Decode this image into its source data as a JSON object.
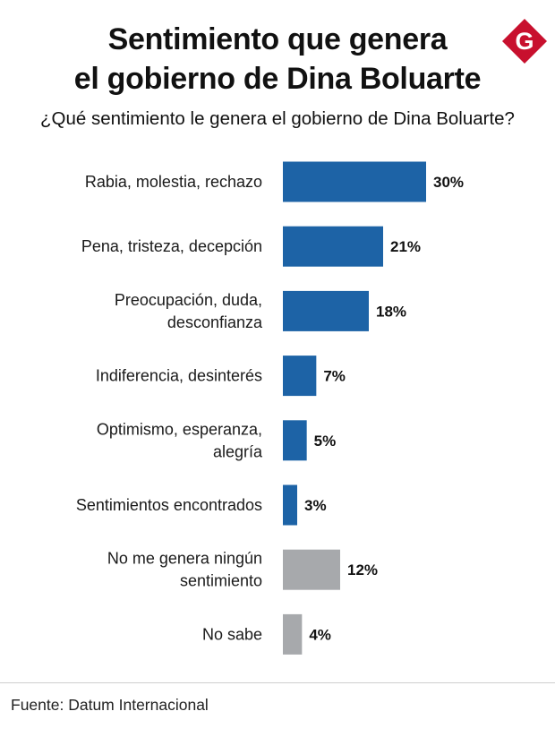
{
  "header": {
    "title_line1": "Sentimiento que genera",
    "title_line2": "el gobierno de Dina Boluarte",
    "logo_letter": "G",
    "logo_icon": "gestion-logo-icon"
  },
  "colors": {
    "primary_bar": "#1d63a6",
    "neutral_bar": "#a7a9ac",
    "logo_red": "#c8102e"
  },
  "chart_data": {
    "type": "bar",
    "orientation": "horizontal",
    "title": "Sentimiento que genera el gobierno de Dina Boluarte",
    "subtitle": "¿Qué sentimiento le genera el gobierno de Dina Boluarte?",
    "categories": [
      [
        "Rabia, molestia, rechazo"
      ],
      [
        "Pena, tristeza, decepción"
      ],
      [
        "Preocupación, duda,",
        "desconfianza"
      ],
      [
        "Indiferencia, desinterés"
      ],
      [
        "Optimismo, esperanza,",
        "alegría"
      ],
      [
        "Sentimientos encontrados"
      ],
      [
        "No me genera ningún",
        "sentimiento"
      ],
      [
        "No sabe"
      ]
    ],
    "values": [
      30,
      21,
      18,
      7,
      5,
      3,
      12,
      4
    ],
    "value_labels": [
      "30%",
      "21%",
      "18%",
      "7%",
      "5%",
      "3%",
      "12%",
      "4%"
    ],
    "bar_colors": [
      "primary",
      "primary",
      "primary",
      "primary",
      "primary",
      "primary",
      "neutral",
      "neutral"
    ],
    "unit": "%",
    "grid": false,
    "axes_visible": false
  },
  "footer": {
    "source": "Fuente: Datum Internacional"
  }
}
